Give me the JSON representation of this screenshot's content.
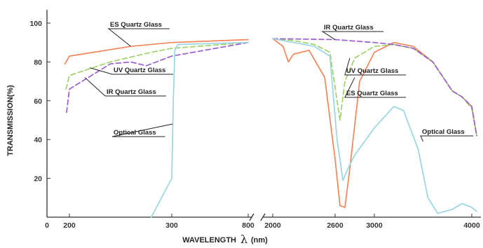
{
  "chart_data": {
    "type": "line",
    "xlabel_text": "WAVELENGTH",
    "xlabel_symbol": "λ",
    "xlabel_unit": "(nm)",
    "ylabel": "TRANSMISSION(%)",
    "ylim": [
      0,
      100
    ],
    "y_ticks": [
      "20",
      "40",
      "60",
      "80",
      "100"
    ],
    "x_ticks": [
      "0",
      "200",
      "300",
      "800",
      "2000",
      "2600",
      "3000",
      "4000"
    ],
    "x_axis_note": "broken axis between 800 and 2000 nm",
    "series": [
      {
        "name": "ES Quartz Glass",
        "color": "#f4855a",
        "dash": "solid",
        "points": [
          [
            160,
            79
          ],
          [
            200,
            83
          ],
          [
            260,
            88
          ],
          [
            300,
            90
          ],
          [
            800,
            91.5
          ],
          [
            2000,
            92
          ],
          [
            2100,
            88
          ],
          [
            2150,
            80
          ],
          [
            2200,
            84
          ],
          [
            2350,
            86
          ],
          [
            2500,
            72
          ],
          [
            2600,
            30
          ],
          [
            2650,
            6
          ],
          [
            2700,
            5
          ],
          [
            2750,
            25
          ],
          [
            2850,
            70
          ],
          [
            3000,
            85
          ],
          [
            3200,
            90
          ],
          [
            3400,
            88
          ],
          [
            3600,
            80
          ],
          [
            3800,
            65
          ],
          [
            3900,
            62
          ],
          [
            4000,
            57
          ],
          [
            4050,
            42
          ]
        ]
      },
      {
        "name": "UV Quartz Glass",
        "color": "#9fd46a",
        "dash": "dashed",
        "points": [
          [
            170,
            66
          ],
          [
            200,
            73
          ],
          [
            240,
            80
          ],
          [
            280,
            85
          ],
          [
            300,
            87
          ],
          [
            800,
            90
          ],
          [
            2000,
            92
          ],
          [
            2200,
            91
          ],
          [
            2400,
            89
          ],
          [
            2550,
            85
          ],
          [
            2620,
            60
          ],
          [
            2650,
            50
          ],
          [
            2700,
            70
          ],
          [
            2800,
            82
          ],
          [
            3000,
            88
          ],
          [
            3200,
            89
          ],
          [
            3400,
            87
          ],
          [
            3600,
            80
          ],
          [
            3800,
            65
          ],
          [
            3900,
            62
          ],
          [
            4000,
            56
          ],
          [
            4050,
            42
          ]
        ]
      },
      {
        "name": "IR Quartz Glass",
        "color": "#9a5fd0",
        "dash": "dashed",
        "points": [
          [
            175,
            54
          ],
          [
            200,
            66
          ],
          [
            240,
            79
          ],
          [
            260,
            80
          ],
          [
            275,
            78
          ],
          [
            300,
            83
          ],
          [
            800,
            90
          ],
          [
            2000,
            92
          ],
          [
            2600,
            91.5
          ],
          [
            3000,
            90
          ],
          [
            3200,
            89
          ],
          [
            3400,
            87
          ],
          [
            3600,
            80
          ],
          [
            3800,
            65
          ],
          [
            3900,
            62
          ],
          [
            4000,
            57
          ],
          [
            4050,
            42
          ]
        ]
      },
      {
        "name": "Optical Glass",
        "color": "#9ad6e2",
        "dash": "solid",
        "points": [
          [
            280,
            0
          ],
          [
            300,
            20
          ],
          [
            310,
            60
          ],
          [
            320,
            86
          ],
          [
            340,
            89
          ],
          [
            800,
            90
          ],
          [
            2000,
            92
          ],
          [
            2200,
            90
          ],
          [
            2400,
            88
          ],
          [
            2550,
            83
          ],
          [
            2620,
            40
          ],
          [
            2680,
            19
          ],
          [
            2730,
            25
          ],
          [
            2800,
            32
          ],
          [
            3000,
            46
          ],
          [
            3200,
            57
          ],
          [
            3300,
            55
          ],
          [
            3450,
            35
          ],
          [
            3550,
            10
          ],
          [
            3650,
            2
          ],
          [
            3800,
            4
          ],
          [
            3900,
            7
          ],
          [
            4000,
            5
          ],
          [
            4050,
            3
          ]
        ]
      }
    ],
    "annotations": [
      {
        "label": "ES Quartz Glass",
        "series": "ES Quartz Glass",
        "x": 2800,
        "y": 72
      },
      {
        "label": "UV Quartz Glass",
        "series": "UV Quartz Glass",
        "x": 2750,
        "y": 82
      },
      {
        "label": "IR Quartz Glass",
        "series": "IR Quartz Glass",
        "x": 2600,
        "y": 91.5
      },
      {
        "label": "Optical Glass",
        "series": "Optical Glass",
        "x": 3500,
        "y": 39
      },
      {
        "label": "ES Quartz Glass",
        "series": "ES Quartz Glass",
        "x": 260,
        "y": 88
      },
      {
        "label": "UV Quartz Glass",
        "series": "UV Quartz Glass",
        "x": 220,
        "y": 77
      },
      {
        "label": "IR Quartz Glass",
        "series": "IR Quartz Glass",
        "x": 215,
        "y": 72
      },
      {
        "label": "Optical Glass",
        "series": "Optical Glass",
        "x": 305,
        "y": 48
      }
    ]
  }
}
